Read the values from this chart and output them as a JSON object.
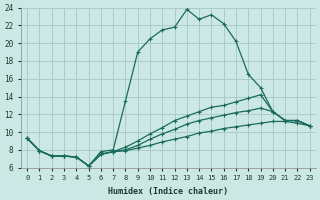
{
  "xlabel": "Humidex (Indice chaleur)",
  "bg_color": "#cce8e4",
  "grid_color": "#aaccca",
  "line_color": "#1a6b5e",
  "xlim": [
    -0.5,
    23.5
  ],
  "ylim": [
    6,
    24
  ],
  "xticks": [
    0,
    1,
    2,
    3,
    4,
    5,
    6,
    7,
    8,
    9,
    10,
    11,
    12,
    13,
    14,
    15,
    16,
    17,
    18,
    19,
    20,
    21,
    22,
    23
  ],
  "yticks": [
    6,
    8,
    10,
    12,
    14,
    16,
    18,
    20,
    22,
    24
  ],
  "series1_x": [
    0,
    1,
    2,
    3,
    4,
    5,
    6,
    7,
    8,
    9,
    10,
    11,
    12,
    13,
    14,
    15,
    16,
    17,
    18,
    19,
    20,
    21,
    22,
    23
  ],
  "series1_y": [
    9.3,
    7.9,
    7.3,
    7.3,
    7.2,
    6.2,
    7.8,
    8.0,
    13.5,
    19.0,
    20.5,
    21.5,
    21.8,
    23.8,
    22.7,
    23.2,
    22.2,
    20.2,
    16.5,
    15.0,
    12.3,
    11.3,
    11.3,
    10.7
  ],
  "series2_x": [
    0,
    1,
    2,
    3,
    4,
    5,
    6,
    7,
    8,
    9,
    10,
    11,
    12,
    13,
    14,
    15,
    16,
    17,
    18,
    19,
    20,
    21,
    22,
    23
  ],
  "series2_y": [
    9.3,
    7.9,
    7.3,
    7.3,
    7.2,
    6.2,
    7.5,
    7.8,
    8.3,
    9.0,
    9.8,
    10.5,
    11.3,
    11.8,
    12.3,
    12.8,
    13.0,
    13.4,
    13.8,
    14.2,
    12.3,
    11.3,
    11.3,
    10.7
  ],
  "series3_x": [
    0,
    1,
    2,
    3,
    4,
    5,
    6,
    7,
    8,
    9,
    10,
    11,
    12,
    13,
    14,
    15,
    16,
    17,
    18,
    19,
    20,
    21,
    22,
    23
  ],
  "series3_y": [
    9.3,
    7.9,
    7.3,
    7.3,
    7.2,
    6.2,
    7.5,
    7.8,
    8.0,
    8.5,
    9.2,
    9.8,
    10.3,
    10.9,
    11.3,
    11.6,
    11.9,
    12.2,
    12.4,
    12.7,
    12.3,
    11.3,
    11.3,
    10.7
  ],
  "series4_x": [
    0,
    1,
    2,
    3,
    4,
    5,
    6,
    7,
    8,
    9,
    10,
    11,
    12,
    13,
    14,
    15,
    16,
    17,
    18,
    19,
    20,
    21,
    22,
    23
  ],
  "series4_y": [
    9.3,
    7.9,
    7.3,
    7.3,
    7.2,
    6.2,
    7.5,
    7.8,
    7.9,
    8.2,
    8.5,
    8.9,
    9.2,
    9.5,
    9.9,
    10.1,
    10.4,
    10.6,
    10.8,
    11.0,
    11.2,
    11.2,
    11.0,
    10.7
  ]
}
